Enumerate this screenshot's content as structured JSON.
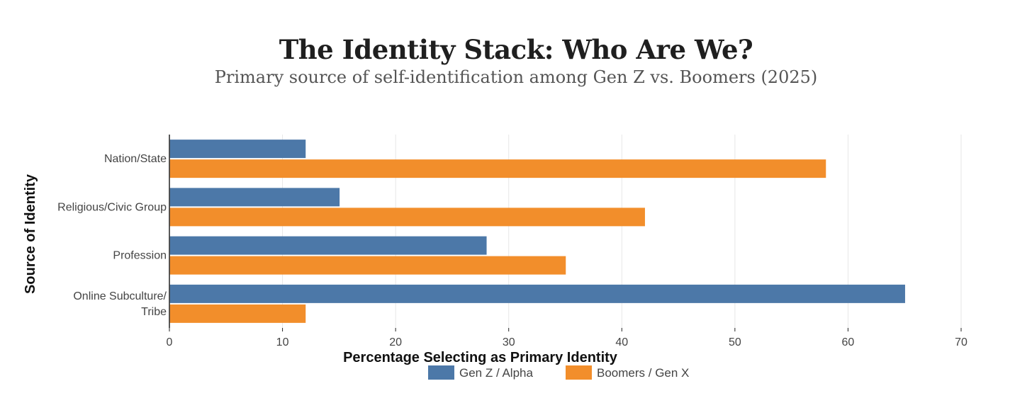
{
  "chart_data": {
    "type": "bar",
    "orientation": "horizontal",
    "title": "The Identity Stack: Who Are We?",
    "subtitle": "Primary source of self-identification among Gen Z vs. Boomers (2025)",
    "xlabel": "Percentage Selecting as Primary Identity",
    "ylabel": "Source of Identity",
    "categories": [
      [
        "Nation/State"
      ],
      [
        "Religious/Civic Group"
      ],
      [
        "Profession"
      ],
      [
        "Online Subculture/",
        "Tribe"
      ]
    ],
    "series": [
      {
        "name": "Gen Z / Alpha",
        "color": "#4c78a8",
        "values": [
          12,
          15,
          28,
          65
        ]
      },
      {
        "name": "Boomers / Gen X",
        "color": "#f28e2b",
        "values": [
          58,
          42,
          35,
          12
        ]
      }
    ],
    "xlim": [
      0,
      70
    ],
    "xticks": [
      0,
      10,
      20,
      30,
      40,
      50,
      60,
      70
    ],
    "grid": true,
    "legend": "bottom-center"
  }
}
